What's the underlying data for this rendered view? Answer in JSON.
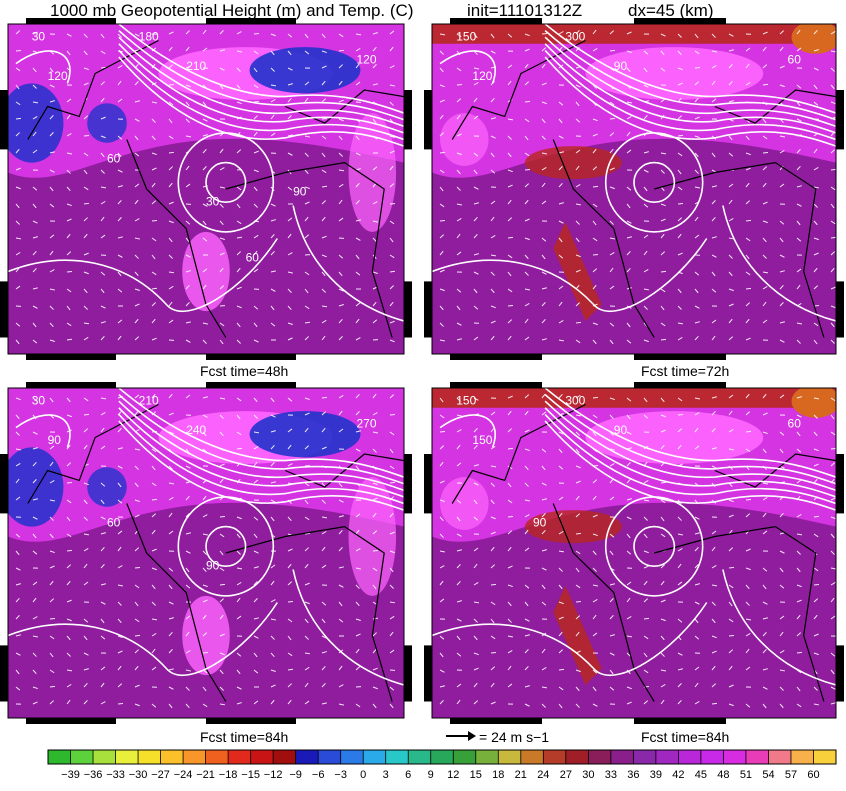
{
  "header": {
    "title": "1000 mb Geopotential Height (m) and Temp. (C)",
    "init": "init=11101312Z",
    "dx": "dx=45 (km)"
  },
  "panels": [
    {
      "label": "",
      "contours": [
        "30",
        "120",
        "180",
        "210",
        "120",
        "60",
        "30",
        "90",
        "60"
      ]
    },
    {
      "label": "Fcst time=48h",
      "contours": [
        "150",
        "120",
        "300",
        "90",
        "60"
      ]
    },
    {
      "label": "Fcst time=72h",
      "contours": [
        "30",
        "90",
        "210",
        "240",
        "270",
        "60",
        "90"
      ]
    },
    {
      "label": "Fcst time=84h",
      "contours": [
        "150",
        "150",
        "300",
        "90",
        "60",
        "90"
      ]
    }
  ],
  "wind_reference": {
    "label": "= 24 m s−1",
    "speed": 24,
    "unit": "m s-1"
  },
  "colorbar": {
    "ticks": [
      "−39",
      "−36",
      "−33",
      "−30",
      "−27",
      "−24",
      "−21",
      "−18",
      "−15",
      "−12",
      "−9",
      "−6",
      "−3",
      "0",
      "3",
      "6",
      "9",
      "12",
      "15",
      "18",
      "21",
      "24",
      "27",
      "30",
      "33",
      "36",
      "39",
      "42",
      "45",
      "48",
      "51",
      "54",
      "57",
      "60"
    ],
    "colors": [
      "#2db82d",
      "#5cd13c",
      "#a8e03c",
      "#e8f03c",
      "#f7e02a",
      "#fbc02a",
      "#f8962a",
      "#f0601f",
      "#e22a1c",
      "#c81414",
      "#a00e0e",
      "#1a1ab8",
      "#2a4ad8",
      "#2a7ae8",
      "#2aaae8",
      "#28c8c8",
      "#28b88a",
      "#28a85a",
      "#38a038",
      "#78b03c",
      "#c8b83c",
      "#c87a28",
      "#b43c28",
      "#a01e28",
      "#8a1e5a",
      "#8a1e8a",
      "#8a28aa",
      "#a028c0",
      "#b828d8",
      "#c828e8",
      "#d82ce0",
      "#e83cb8",
      "#f07a8a",
      "#f8b04a",
      "#f8d03c"
    ]
  },
  "colors": {
    "bg_purple": "#8f1d9e",
    "magenta": "#e038ec",
    "pink": "#ff66ff",
    "blue": "#2233cc",
    "red": "#b8271e",
    "orange": "#d86820",
    "contour": "#ffffff",
    "border": "#000000"
  }
}
